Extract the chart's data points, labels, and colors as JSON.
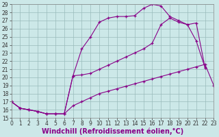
{
  "xlabel": "Windchill (Refroidissement éolien,°C)",
  "xlim": [
    0,
    23
  ],
  "ylim": [
    15,
    29
  ],
  "xticks": [
    0,
    1,
    2,
    3,
    4,
    5,
    6,
    7,
    8,
    9,
    10,
    11,
    12,
    13,
    14,
    15,
    16,
    17,
    18,
    19,
    20,
    21,
    22,
    23
  ],
  "yticks": [
    15,
    16,
    17,
    18,
    19,
    20,
    21,
    22,
    23,
    24,
    25,
    26,
    27,
    28,
    29
  ],
  "background_color": "#cce8e8",
  "line_color": "#880088",
  "grid_color": "#99bbbb",
  "tick_fontsize": 5.5,
  "xlabel_fontsize": 7,
  "marker": "+",
  "line1_x": [
    0,
    1,
    2,
    3,
    4,
    5,
    6,
    7,
    8,
    9,
    10,
    11,
    12,
    13,
    14,
    15,
    16,
    17,
    18,
    19,
    20,
    21,
    22,
    23
  ],
  "line1_y": [
    17.0,
    16.2,
    16.0,
    15.8,
    15.5,
    15.5,
    15.5,
    16.5,
    17.0,
    17.5,
    18.0,
    18.3,
    18.6,
    18.9,
    19.2,
    19.5,
    19.8,
    20.1,
    20.4,
    20.7,
    21.0,
    21.3,
    21.6,
    19.0
  ],
  "line2_x": [
    0,
    1,
    2,
    3,
    4,
    5,
    6,
    7,
    8,
    9,
    10,
    11,
    12,
    13,
    14,
    15,
    16,
    17,
    18,
    19,
    20,
    21,
    22,
    23
  ],
  "line2_y": [
    17.0,
    16.2,
    16.0,
    15.8,
    15.5,
    15.5,
    15.5,
    20.2,
    23.5,
    25.0,
    26.8,
    27.3,
    27.5,
    27.5,
    27.6,
    28.5,
    29.0,
    28.8,
    27.5,
    27.0,
    26.5,
    26.7,
    21.2,
    null
  ],
  "line3_x": [
    0,
    1,
    2,
    3,
    4,
    5,
    6,
    7,
    8,
    9,
    10,
    11,
    12,
    13,
    14,
    15,
    16,
    17,
    18,
    19,
    20,
    21,
    22,
    23
  ],
  "line3_y": [
    17.0,
    16.2,
    16.0,
    15.8,
    15.5,
    15.5,
    15.5,
    20.2,
    20.3,
    20.5,
    21.0,
    21.5,
    22.0,
    22.5,
    23.0,
    23.5,
    24.2,
    26.5,
    27.3,
    26.8,
    26.5,
    24.5,
    21.2,
    null
  ]
}
